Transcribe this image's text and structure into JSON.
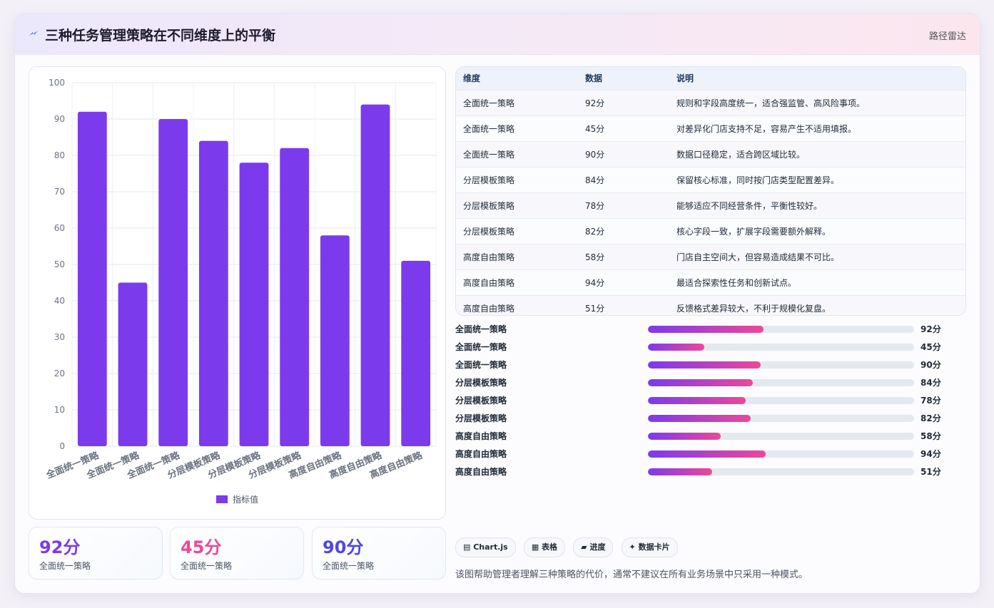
{
  "header": {
    "title": "三种任务管理策略在不同维度上的平衡",
    "tag": "路径雷达"
  },
  "chart_data": {
    "type": "bar",
    "categories": [
      "全面统一策略",
      "全面统一策略",
      "全面统一策略",
      "分层模板策略",
      "分层模板策略",
      "分层模板策略",
      "高度自由策略",
      "高度自由策略",
      "高度自由策略"
    ],
    "series": [
      {
        "name": "指标值",
        "values": [
          92,
          45,
          90,
          84,
          78,
          82,
          58,
          94,
          51
        ]
      }
    ],
    "ylim": [
      0,
      100
    ],
    "yticks": [
      0,
      10,
      20,
      30,
      40,
      50,
      60,
      70,
      80,
      90,
      100
    ],
    "grid": true,
    "legend": "bottom",
    "color": "#7c3aed"
  },
  "stats": [
    {
      "value": "92分",
      "label": "全面统一策略",
      "color": "#7c3aed"
    },
    {
      "value": "45分",
      "label": "全面统一策略",
      "color": "#ec4899"
    },
    {
      "value": "90分",
      "label": "全面统一策略",
      "color": "#4f46e5"
    }
  ],
  "table": {
    "headers": [
      "维度",
      "数据",
      "说明"
    ],
    "rows": [
      [
        "全面统一策略",
        "92分",
        "规则和字段高度统一，适合强监管、高风险事项。"
      ],
      [
        "全面统一策略",
        "45分",
        "对差异化门店支持不足，容易产生不适用填报。"
      ],
      [
        "全面统一策略",
        "90分",
        "数据口径稳定，适合跨区域比较。"
      ],
      [
        "分层模板策略",
        "84分",
        "保留核心标准，同时按门店类型配置差异。"
      ],
      [
        "分层模板策略",
        "78分",
        "能够适应不同经营条件，平衡性较好。"
      ],
      [
        "分层模板策略",
        "82分",
        "核心字段一致，扩展字段需要额外解释。"
      ],
      [
        "高度自由策略",
        "58分",
        "门店自主空间大，但容易造成结果不可比。"
      ],
      [
        "高度自由策略",
        "94分",
        "最适合探索性任务和创新试点。"
      ],
      [
        "高度自由策略",
        "51分",
        "反馈格式差异较大，不利于规模化复盘。"
      ]
    ]
  },
  "progress": [
    {
      "label": "全面统一策略",
      "value": "92分",
      "fraction": 0.433
    },
    {
      "label": "全面统一策略",
      "value": "45分",
      "fraction": 0.212
    },
    {
      "label": "全面统一策略",
      "value": "90分",
      "fraction": 0.423
    },
    {
      "label": "分层模板策略",
      "value": "84分",
      "fraction": 0.395
    },
    {
      "label": "分层模板策略",
      "value": "78分",
      "fraction": 0.367
    },
    {
      "label": "分层模板策略",
      "value": "82分",
      "fraction": 0.386
    },
    {
      "label": "高度自由策略",
      "value": "58分",
      "fraction": 0.273
    },
    {
      "label": "高度自由策略",
      "value": "94分",
      "fraction": 0.442
    },
    {
      "label": "高度自由策略",
      "value": "51分",
      "fraction": 0.24
    }
  ],
  "chips": [
    "▤ Chart.js",
    "▦ 表格",
    "▰ 进度",
    "✦ 数据卡片"
  ],
  "note": "该图帮助管理者理解三种策略的代价，通常不建议在所有业务场景中只采用一种模式。"
}
